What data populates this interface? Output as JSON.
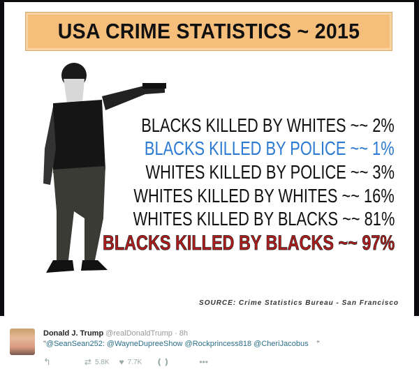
{
  "image": {
    "title": "USA CRIME STATISTICS ~ 2015",
    "lines": [
      {
        "text": "BLACKS KILLED BY WHITES ~~  2%",
        "color": "#111111"
      },
      {
        "text": "BLACKS KILLED BY POLICE ~~  1%",
        "color": "#2c7ad1"
      },
      {
        "text": "WHITES KILLED BY POLICE ~~  3%",
        "color": "#111111"
      },
      {
        "text": "WHITES KILLED BY WHITES ~~ 16%",
        "color": "#111111"
      },
      {
        "text": "WHITES KILLED BY BLACKS ~~ 81%",
        "color": "#111111"
      },
      {
        "text": "BLACKS KILLED BY BLACKS ~~ 97%",
        "color": "#b01c1c"
      }
    ],
    "source": "SOURCE:  Crime Statistics Bureau - San Francisco",
    "banner_color": "#f5be7a"
  },
  "tweet": {
    "name": "Donald J. Trump",
    "handle": "@realDonaldTrump · 8h",
    "open_quote": "\"",
    "mentions": "@SeanSean252: @WayneDupreeShow @Rockprincess818 @CheriJacobus",
    "close_quote": "\"",
    "retweets": "5.8K",
    "likes": "7.7K",
    "icons": [
      "reply-icon",
      "retweet-icon",
      "heart-icon",
      "bookmark-icon",
      "more-icon"
    ]
  }
}
